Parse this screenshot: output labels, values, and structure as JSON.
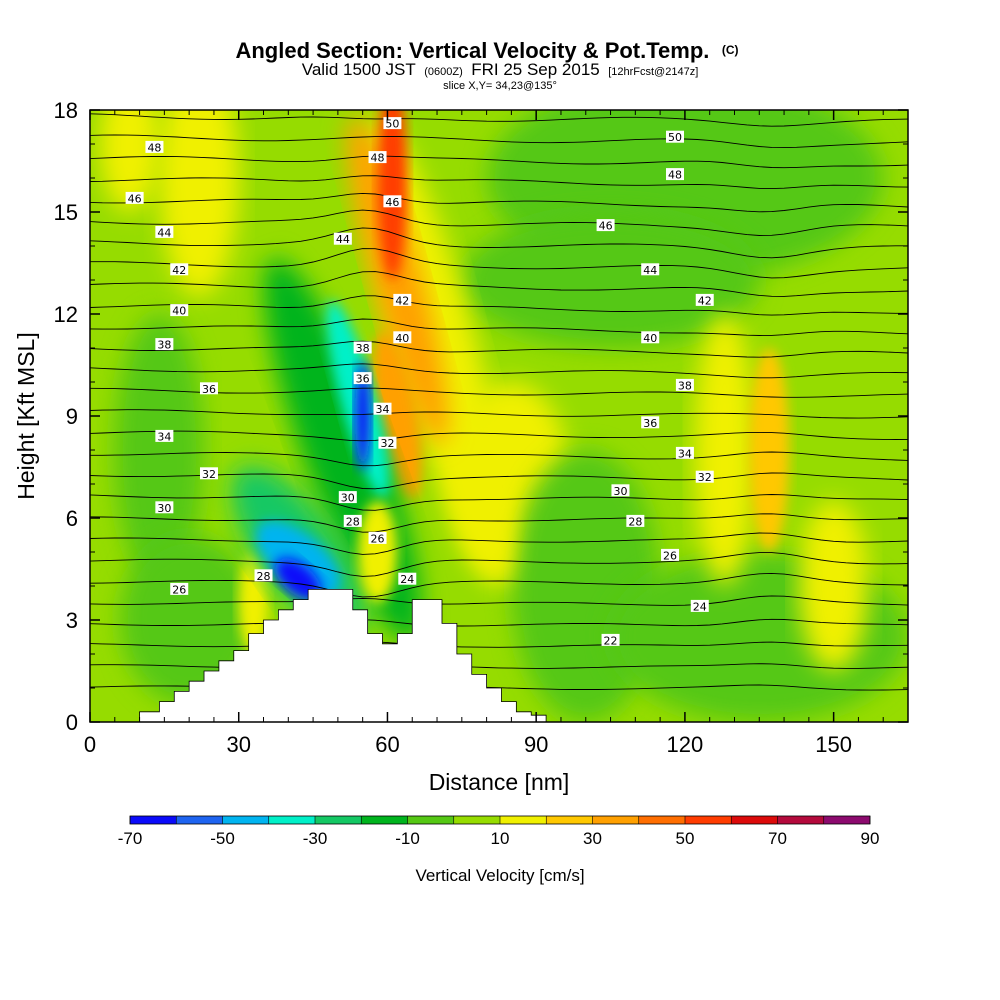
{
  "title": {
    "main": "Angled Section: Vertical Velocity & Pot.Temp.",
    "main_tag": "(C)",
    "valid_a": "Valid 1500 JST",
    "valid_b": "(0600Z)",
    "valid_c": "FRI 25 Sep 2015",
    "valid_d": "[12hrFcst@2147z]",
    "slice": "slice X,Y= 34,23@135°"
  },
  "chart_data": {
    "type": "heatmap",
    "xlabel": "Distance [nm]",
    "ylabel": "Height [Kft MSL]",
    "xlim": [
      0,
      165
    ],
    "ylim": [
      0,
      18
    ],
    "x_ticks": [
      0,
      30,
      60,
      90,
      120,
      150
    ],
    "y_ticks": [
      0,
      3,
      6,
      9,
      12,
      15,
      18
    ],
    "colorbar": {
      "label": "Vertical Velocity [cm/s]",
      "ticks": [
        -70,
        -50,
        -30,
        -10,
        10,
        30,
        50,
        70,
        90
      ],
      "levels": [
        -70,
        -60,
        -50,
        -40,
        -30,
        -20,
        -10,
        0,
        10,
        20,
        30,
        40,
        50,
        60,
        70,
        80,
        90
      ],
      "colors": [
        "#0a0afa",
        "#1e64f0",
        "#00b4f0",
        "#00f0c8",
        "#14c864",
        "#00b41e",
        "#55c814",
        "#96dc00",
        "#f0f000",
        "#ffc800",
        "#ffa000",
        "#ff6e00",
        "#ff3c00",
        "#dc0a0a",
        "#b40a3c",
        "#8c0a6e"
      ]
    },
    "field_features": [
      {
        "type": "updraft",
        "x": 62,
        "y": 14,
        "value": 55
      },
      {
        "type": "updraft",
        "x": 60,
        "y": 9,
        "value": 40
      },
      {
        "type": "downdraft",
        "x": 55,
        "y": 9,
        "value": -65
      },
      {
        "type": "downdraft",
        "x": 42,
        "y": 4,
        "value": -60
      },
      {
        "type": "updraft",
        "x": 137,
        "y": 8,
        "value": 28
      }
    ],
    "series": [
      {
        "name": "theta",
        "type": "contour",
        "levels": [
          22,
          24,
          26,
          28,
          30,
          32,
          34,
          36,
          38,
          40,
          42,
          44,
          46,
          48,
          50
        ]
      }
    ],
    "contour_labels": [
      {
        "text": "50",
        "x": 61,
        "y": 17.6
      },
      {
        "text": "48",
        "x": 13,
        "y": 16.9
      },
      {
        "text": "48",
        "x": 58,
        "y": 16.6
      },
      {
        "text": "46",
        "x": 9,
        "y": 15.4
      },
      {
        "text": "46",
        "x": 61,
        "y": 15.3
      },
      {
        "text": "44",
        "x": 15,
        "y": 14.4
      },
      {
        "text": "44",
        "x": 51,
        "y": 14.2
      },
      {
        "text": "42",
        "x": 18,
        "y": 13.3
      },
      {
        "text": "42",
        "x": 63,
        "y": 12.4
      },
      {
        "text": "40",
        "x": 18,
        "y": 12.1
      },
      {
        "text": "40",
        "x": 63,
        "y": 11.3
      },
      {
        "text": "38",
        "x": 15,
        "y": 11.1
      },
      {
        "text": "38",
        "x": 55,
        "y": 11.0
      },
      {
        "text": "36",
        "x": 24,
        "y": 9.8
      },
      {
        "text": "36",
        "x": 55,
        "y": 10.1
      },
      {
        "text": "34",
        "x": 15,
        "y": 8.4
      },
      {
        "text": "34",
        "x": 59,
        "y": 9.2
      },
      {
        "text": "32",
        "x": 24,
        "y": 7.3
      },
      {
        "text": "32",
        "x": 60,
        "y": 8.2
      },
      {
        "text": "30",
        "x": 15,
        "y": 6.3
      },
      {
        "text": "30",
        "x": 52,
        "y": 6.6
      },
      {
        "text": "28",
        "x": 53,
        "y": 5.9
      },
      {
        "text": "28",
        "x": 35,
        "y": 4.3
      },
      {
        "text": "26",
        "x": 58,
        "y": 5.4
      },
      {
        "text": "26",
        "x": 18,
        "y": 3.9
      },
      {
        "text": "24",
        "x": 64,
        "y": 4.2
      },
      {
        "text": "22",
        "x": 105,
        "y": 2.4
      },
      {
        "text": "50",
        "x": 118,
        "y": 17.2
      },
      {
        "text": "48",
        "x": 118,
        "y": 16.1
      },
      {
        "text": "46",
        "x": 104,
        "y": 14.6
      },
      {
        "text": "44",
        "x": 113,
        "y": 13.3
      },
      {
        "text": "42",
        "x": 124,
        "y": 12.4
      },
      {
        "text": "40",
        "x": 113,
        "y": 11.3
      },
      {
        "text": "38",
        "x": 120,
        "y": 9.9
      },
      {
        "text": "36",
        "x": 113,
        "y": 8.8
      },
      {
        "text": "34",
        "x": 120,
        "y": 7.9
      },
      {
        "text": "32",
        "x": 124,
        "y": 7.2
      },
      {
        "text": "30",
        "x": 107,
        "y": 6.8
      },
      {
        "text": "28",
        "x": 110,
        "y": 5.9
      },
      {
        "text": "26",
        "x": 117,
        "y": 4.9
      },
      {
        "text": "24",
        "x": 123,
        "y": 3.4
      }
    ],
    "terrain_profile": {
      "x": [
        0,
        10,
        14,
        17,
        20,
        23,
        26,
        29,
        32,
        35,
        38,
        41,
        44,
        47,
        50,
        53,
        56,
        59,
        62,
        65,
        68,
        71,
        74,
        77,
        80,
        83,
        86,
        89,
        92,
        165
      ],
      "height": [
        0,
        0.3,
        0.6,
        0.9,
        1.2,
        1.5,
        1.8,
        2.1,
        2.6,
        3.0,
        3.3,
        3.6,
        3.9,
        3.9,
        3.9,
        3.3,
        2.6,
        2.3,
        2.6,
        3.6,
        3.6,
        2.9,
        2.0,
        1.4,
        1.0,
        0.6,
        0.3,
        0.2,
        0,
        0
      ]
    }
  }
}
